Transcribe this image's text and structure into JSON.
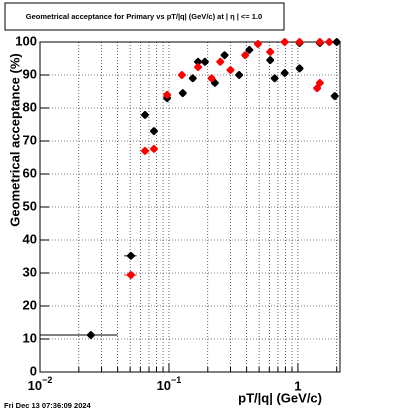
{
  "chart_data": {
    "type": "scatter",
    "title": "Geometrical acceptance for Primary vs pT/|q| (GeV/c) at |  η  | <= 1.0",
    "x_label": "pT/|q| (GeV/c)",
    "y_label": "Geometrical acceptance (%)",
    "footer": "Fri Dec 13 07:36:09 2024",
    "log_x": true,
    "grid": true,
    "xlim": [
      0.01,
      2.12
    ],
    "ylim": [
      0,
      100
    ],
    "xticks": [
      {
        "value": 0.01,
        "label": "10",
        "exponent": "−2"
      },
      {
        "value": 0.1,
        "label": "10",
        "exponent": "−1"
      },
      1
    ],
    "yticks": [
      0,
      10,
      20,
      30,
      40,
      50,
      60,
      70,
      80,
      90,
      100
    ],
    "series": [
      {
        "color": "#000000",
        "x": [
          0.0248,
          0.0507,
          0.0652,
          0.0765,
          0.0968,
          0.128,
          0.153,
          0.168,
          0.19,
          0.227,
          0.27,
          0.35,
          0.42,
          0.61,
          0.66,
          0.79,
          1.03,
          1.03,
          1.48,
          1.93,
          2.0
        ],
        "values": [
          11.2,
          35.2,
          77.9,
          73,
          83,
          84.5,
          89,
          94,
          94,
          87.6,
          96,
          90,
          97.6,
          94.5,
          89,
          90.6,
          99.7,
          92,
          99.7,
          83.6,
          100
        ],
        "x_low": [
          0.01,
          0.045,
          null,
          null,
          null,
          null,
          null,
          null,
          null,
          null,
          null,
          null,
          null,
          null,
          null,
          null,
          null,
          null,
          null,
          null,
          null
        ],
        "x_high": [
          0.04,
          0.056,
          null,
          null,
          null,
          null,
          null,
          null,
          null,
          null,
          null,
          null,
          null,
          null,
          null,
          null,
          null,
          null,
          null,
          null,
          null
        ]
      },
      {
        "color": "#ff0000",
        "x": [
          0.0507,
          0.0652,
          0.0765,
          0.0968,
          0.126,
          0.168,
          0.214,
          0.25,
          0.3,
          0.39,
          0.49,
          0.61,
          0.79,
          1.03,
          1.41,
          1.48,
          1.48,
          1.75
        ],
        "values": [
          29.4,
          67,
          67.6,
          84,
          90,
          92.4,
          89,
          94,
          91.5,
          96,
          99.4,
          97,
          100,
          100,
          86,
          87.6,
          100,
          100
        ],
        "x_low": [
          0.045,
          null,
          null,
          null,
          null,
          null,
          null,
          null,
          null,
          null,
          null,
          null,
          null,
          null,
          null,
          null,
          null,
          null
        ],
        "x_high": [
          0.056,
          null,
          null,
          null,
          null,
          null,
          null,
          null,
          null,
          null,
          null,
          null,
          null,
          null,
          null,
          null,
          null,
          null
        ]
      }
    ]
  }
}
